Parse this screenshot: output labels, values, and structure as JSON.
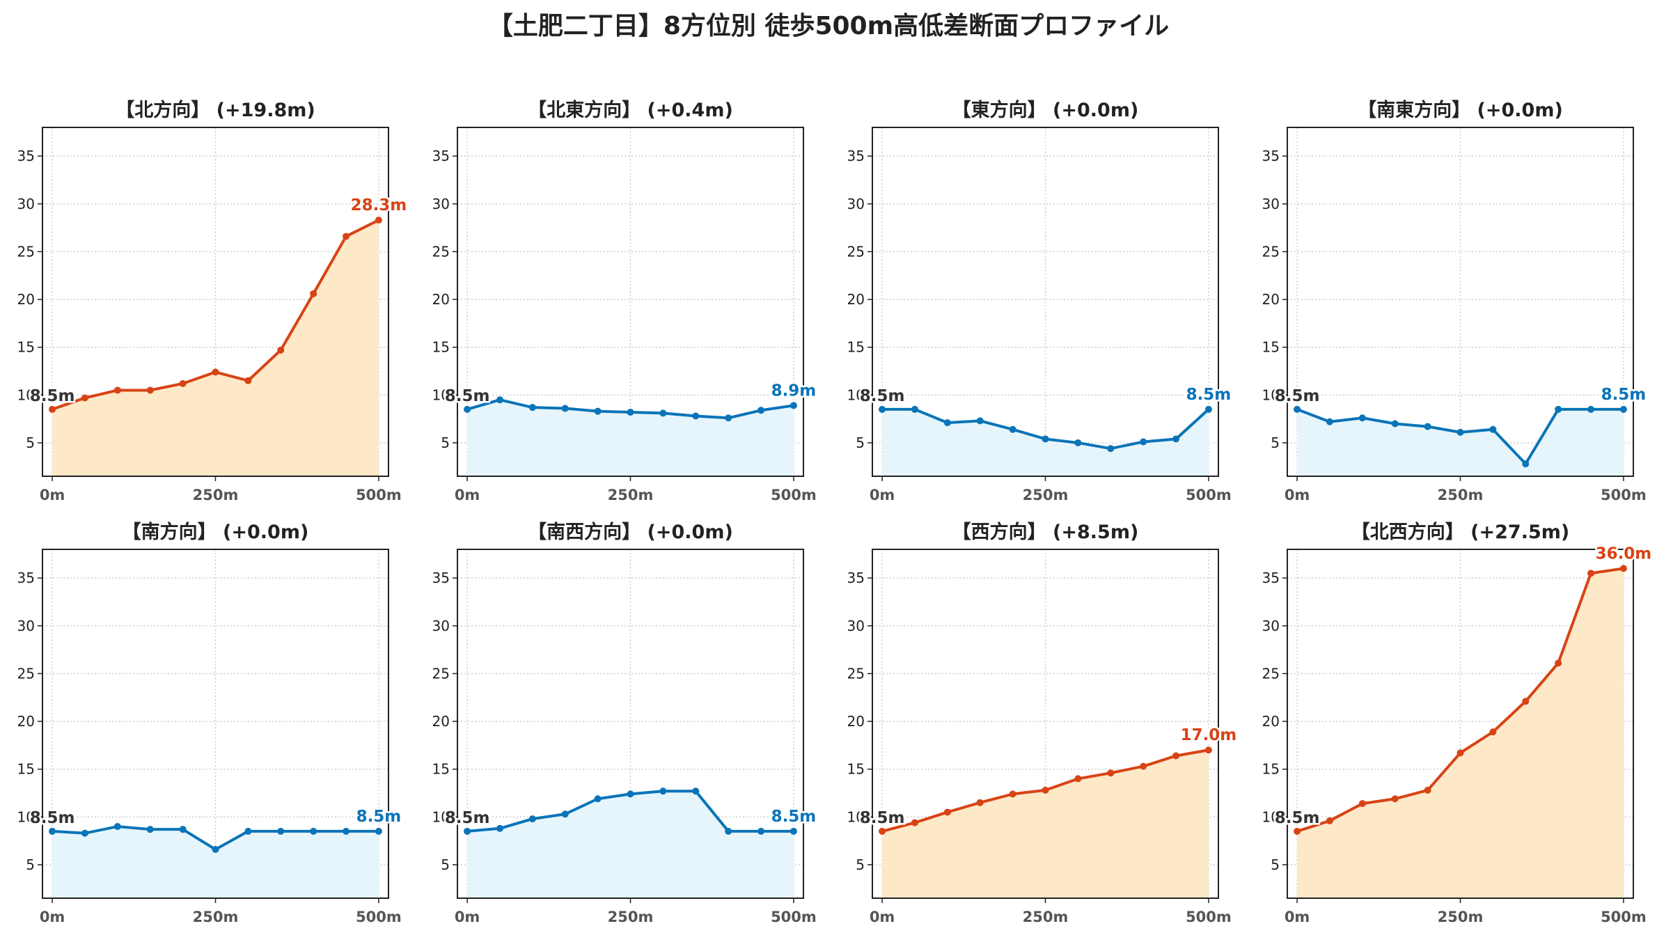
{
  "title": "【土肥二丁目】8方位別 徒歩500m高低差断面プロファイル",
  "colors": {
    "up_line": "#d84315",
    "up_fill": "#fde9c8",
    "down_line": "#0a74b8",
    "down_fill": "#e6f5fb",
    "start_label": "#333333",
    "grid": "#c8c8c8",
    "tick_text": "#555555"
  },
  "chart_data": [
    {
      "type": "area",
      "title": "【北方向】 (+19.8m)",
      "trend": "up",
      "x": [
        0,
        50,
        100,
        150,
        200,
        250,
        300,
        350,
        400,
        450,
        500
      ],
      "y": [
        8.5,
        9.7,
        10.5,
        10.5,
        11.2,
        12.4,
        11.5,
        14.7,
        20.6,
        26.6,
        28.3
      ],
      "start_label": "8.5m",
      "end_label": "28.3m",
      "x_ticks": [
        "0m",
        "250m",
        "500m"
      ],
      "y_ticks": [
        "5",
        "10",
        "15",
        "20",
        "25",
        "30",
        "35"
      ],
      "xlim": [
        -15,
        515
      ],
      "ylim": [
        1.5,
        38
      ],
      "grid": true
    },
    {
      "type": "area",
      "title": "【北東方向】 (+0.4m)",
      "trend": "down",
      "x": [
        0,
        50,
        100,
        150,
        200,
        250,
        300,
        350,
        400,
        450,
        500
      ],
      "y": [
        8.5,
        9.5,
        8.7,
        8.6,
        8.3,
        8.2,
        8.1,
        7.8,
        7.6,
        8.4,
        8.9
      ],
      "start_label": "8.5m",
      "end_label": "8.9m",
      "x_ticks": [
        "0m",
        "250m",
        "500m"
      ],
      "y_ticks": [
        "5",
        "10",
        "15",
        "20",
        "25",
        "30",
        "35"
      ],
      "xlim": [
        -15,
        515
      ],
      "ylim": [
        1.5,
        38
      ],
      "grid": true
    },
    {
      "type": "area",
      "title": "【東方向】 (+0.0m)",
      "trend": "down",
      "x": [
        0,
        50,
        100,
        150,
        200,
        250,
        300,
        350,
        400,
        450,
        500
      ],
      "y": [
        8.5,
        8.5,
        7.1,
        7.3,
        6.4,
        5.4,
        5.0,
        4.4,
        5.1,
        5.4,
        8.5
      ],
      "start_label": "8.5m",
      "end_label": "8.5m",
      "x_ticks": [
        "0m",
        "250m",
        "500m"
      ],
      "y_ticks": [
        "5",
        "10",
        "15",
        "20",
        "25",
        "30",
        "35"
      ],
      "xlim": [
        -15,
        515
      ],
      "ylim": [
        1.5,
        38
      ],
      "grid": true
    },
    {
      "type": "area",
      "title": "【南東方向】 (+0.0m)",
      "trend": "down",
      "x": [
        0,
        50,
        100,
        150,
        200,
        250,
        300,
        350,
        400,
        450,
        500
      ],
      "y": [
        8.5,
        7.2,
        7.6,
        7.0,
        6.7,
        6.1,
        6.4,
        2.8,
        8.5,
        8.5,
        8.5
      ],
      "start_label": "8.5m",
      "end_label": "8.5m",
      "x_ticks": [
        "0m",
        "250m",
        "500m"
      ],
      "y_ticks": [
        "5",
        "10",
        "15",
        "20",
        "25",
        "30",
        "35"
      ],
      "xlim": [
        -15,
        515
      ],
      "ylim": [
        1.5,
        38
      ],
      "grid": true
    },
    {
      "type": "area",
      "title": "【南方向】 (+0.0m)",
      "trend": "down",
      "x": [
        0,
        50,
        100,
        150,
        200,
        250,
        300,
        350,
        400,
        450,
        500
      ],
      "y": [
        8.5,
        8.3,
        9.0,
        8.7,
        8.7,
        6.6,
        8.5,
        8.5,
        8.5,
        8.5,
        8.5
      ],
      "start_label": "8.5m",
      "end_label": "8.5m",
      "x_ticks": [
        "0m",
        "250m",
        "500m"
      ],
      "y_ticks": [
        "5",
        "10",
        "15",
        "20",
        "25",
        "30",
        "35"
      ],
      "xlim": [
        -15,
        515
      ],
      "ylim": [
        1.5,
        38
      ],
      "grid": true
    },
    {
      "type": "area",
      "title": "【南西方向】 (+0.0m)",
      "trend": "down",
      "x": [
        0,
        50,
        100,
        150,
        200,
        250,
        300,
        350,
        400,
        450,
        500
      ],
      "y": [
        8.5,
        8.8,
        9.8,
        10.3,
        11.9,
        12.4,
        12.7,
        12.7,
        8.5,
        8.5,
        8.5
      ],
      "start_label": "8.5m",
      "end_label": "8.5m",
      "x_ticks": [
        "0m",
        "250m",
        "500m"
      ],
      "y_ticks": [
        "5",
        "10",
        "15",
        "20",
        "25",
        "30",
        "35"
      ],
      "xlim": [
        -15,
        515
      ],
      "ylim": [
        1.5,
        38
      ],
      "grid": true
    },
    {
      "type": "area",
      "title": "【西方向】 (+8.5m)",
      "trend": "up",
      "x": [
        0,
        50,
        100,
        150,
        200,
        250,
        300,
        350,
        400,
        450,
        500
      ],
      "y": [
        8.5,
        9.4,
        10.5,
        11.5,
        12.4,
        12.8,
        14.0,
        14.6,
        15.3,
        16.4,
        17.0
      ],
      "start_label": "8.5m",
      "end_label": "17.0m",
      "x_ticks": [
        "0m",
        "250m",
        "500m"
      ],
      "y_ticks": [
        "5",
        "10",
        "15",
        "20",
        "25",
        "30",
        "35"
      ],
      "xlim": [
        -15,
        515
      ],
      "ylim": [
        1.5,
        38
      ],
      "grid": true
    },
    {
      "type": "area",
      "title": "【北西方向】 (+27.5m)",
      "trend": "up",
      "x": [
        0,
        50,
        100,
        150,
        200,
        250,
        300,
        350,
        400,
        450,
        500
      ],
      "y": [
        8.5,
        9.6,
        11.4,
        11.9,
        12.8,
        16.7,
        18.9,
        22.1,
        26.1,
        35.5,
        36.0
      ],
      "start_label": "8.5m",
      "end_label": "36.0m",
      "x_ticks": [
        "0m",
        "250m",
        "500m"
      ],
      "y_ticks": [
        "5",
        "10",
        "15",
        "20",
        "25",
        "30",
        "35"
      ],
      "xlim": [
        -15,
        515
      ],
      "ylim": [
        1.5,
        38
      ],
      "grid": true
    }
  ]
}
